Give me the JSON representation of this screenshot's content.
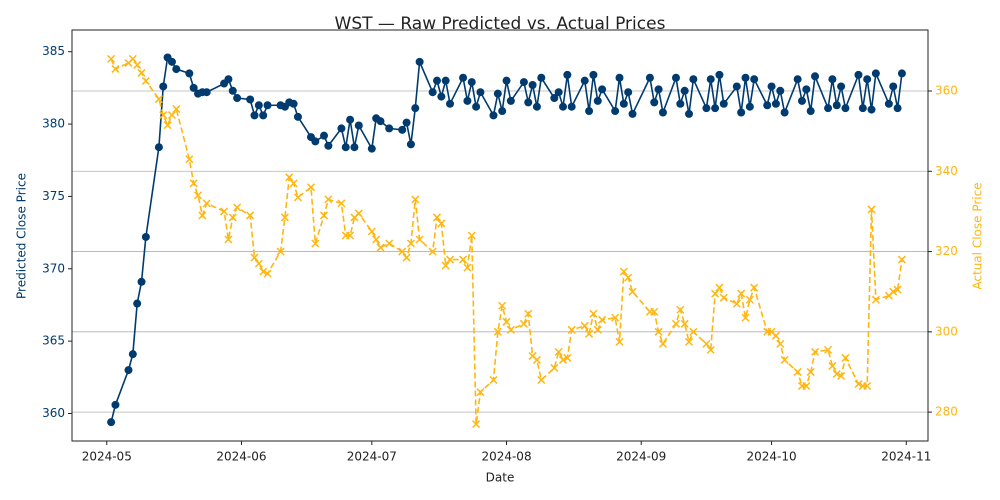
{
  "chart_data": {
    "type": "line",
    "title": "WST — Raw Predicted vs. Actual Prices",
    "xlabel": "Date",
    "ylabel": "Predicted Close Price",
    "y2label": "Actual Close Price",
    "x": [
      "2024-05-02",
      "2024-05-03",
      "2024-05-06",
      "2024-05-07",
      "2024-05-08",
      "2024-05-09",
      "2024-05-10",
      "2024-05-13",
      "2024-05-14",
      "2024-05-15",
      "2024-05-16",
      "2024-05-17",
      "2024-05-20",
      "2024-05-21",
      "2024-05-22",
      "2024-05-23",
      "2024-05-24",
      "2024-05-28",
      "2024-05-29",
      "2024-05-30",
      "2024-05-31",
      "2024-06-03",
      "2024-06-04",
      "2024-06-05",
      "2024-06-06",
      "2024-06-07",
      "2024-06-10",
      "2024-06-11",
      "2024-06-12",
      "2024-06-13",
      "2024-06-14",
      "2024-06-17",
      "2024-06-18",
      "2024-06-20",
      "2024-06-21",
      "2024-06-24",
      "2024-06-25",
      "2024-06-26",
      "2024-06-27",
      "2024-06-28",
      "2024-07-01",
      "2024-07-02",
      "2024-07-03",
      "2024-07-05",
      "2024-07-08",
      "2024-07-09",
      "2024-07-10",
      "2024-07-11",
      "2024-07-12",
      "2024-07-15",
      "2024-07-16",
      "2024-07-17",
      "2024-07-18",
      "2024-07-19",
      "2024-07-22",
      "2024-07-23",
      "2024-07-24",
      "2024-07-25",
      "2024-07-26",
      "2024-07-29",
      "2024-07-30",
      "2024-07-31",
      "2024-08-01",
      "2024-08-02",
      "2024-08-05",
      "2024-08-06",
      "2024-08-07",
      "2024-08-08",
      "2024-08-09",
      "2024-08-12",
      "2024-08-13",
      "2024-08-14",
      "2024-08-15",
      "2024-08-16",
      "2024-08-19",
      "2024-08-20",
      "2024-08-21",
      "2024-08-22",
      "2024-08-23",
      "2024-08-26",
      "2024-08-27",
      "2024-08-28",
      "2024-08-29",
      "2024-08-30",
      "2024-09-03",
      "2024-09-04",
      "2024-09-05",
      "2024-09-06",
      "2024-09-09",
      "2024-09-10",
      "2024-09-11",
      "2024-09-12",
      "2024-09-13",
      "2024-09-16",
      "2024-09-17",
      "2024-09-18",
      "2024-09-19",
      "2024-09-20",
      "2024-09-23",
      "2024-09-24",
      "2024-09-25",
      "2024-09-26",
      "2024-09-27",
      "2024-09-30",
      "2024-10-01",
      "2024-10-02",
      "2024-10-03",
      "2024-10-04",
      "2024-10-07",
      "2024-10-08",
      "2024-10-09",
      "2024-10-10",
      "2024-10-11",
      "2024-10-14",
      "2024-10-15",
      "2024-10-16",
      "2024-10-17",
      "2024-10-18",
      "2024-10-21",
      "2024-10-22",
      "2024-10-23",
      "2024-10-24",
      "2024-10-25",
      "2024-10-28",
      "2024-10-29",
      "2024-10-30",
      "2024-10-31"
    ],
    "series": [
      {
        "name": "Predicted Close Price",
        "color": "#003b6f",
        "axis": "y",
        "marker": "o",
        "linestyle": "solid",
        "values": [
          359.4,
          360.6,
          363.0,
          364.1,
          367.6,
          369.1,
          372.2,
          378.4,
          382.6,
          384.6,
          384.3,
          383.8,
          383.5,
          382.5,
          382.1,
          382.2,
          382.2,
          382.8,
          383.1,
          382.3,
          381.8,
          381.7,
          380.6,
          381.3,
          380.6,
          381.3,
          381.3,
          381.2,
          381.5,
          381.4,
          380.5,
          379.1,
          378.8,
          379.2,
          378.5,
          379.7,
          378.4,
          380.3,
          378.4,
          379.9,
          378.3,
          380.4,
          380.2,
          379.7,
          379.6,
          380.1,
          378.6,
          381.1,
          384.3,
          382.2,
          383.0,
          381.9,
          383.0,
          381.4,
          383.2,
          381.6,
          382.9,
          381.2,
          382.2,
          380.6,
          382.1,
          380.9,
          383.0,
          381.6,
          382.9,
          381.5,
          382.7,
          381.2,
          383.2,
          381.8,
          382.2,
          381.2,
          383.4,
          381.2,
          383.0,
          380.9,
          383.4,
          381.6,
          382.4,
          380.9,
          383.2,
          381.4,
          382.2,
          380.7,
          383.2,
          381.5,
          382.4,
          380.8,
          383.2,
          381.4,
          382.3,
          380.7,
          383.1,
          381.1,
          383.1,
          381.1,
          383.4,
          381.4,
          382.6,
          380.8,
          383.2,
          381.2,
          383.1,
          381.3,
          382.6,
          381.4,
          382.3,
          380.8,
          383.1,
          381.6,
          382.4,
          380.9,
          383.3,
          381.1,
          383.1,
          381.3,
          382.6,
          381.1,
          383.4,
          381.1,
          383.1,
          381.0,
          383.5,
          381.4,
          382.6,
          381.1,
          383.5
        ]
      },
      {
        "name": "Actual Close Price",
        "color": "#ffb612",
        "axis": "y2",
        "marker": "x",
        "linestyle": "dashed",
        "values": [
          368,
          365.5,
          367,
          368,
          366.5,
          364.5,
          362.5,
          358,
          354,
          351.5,
          354,
          355.5,
          343,
          337,
          334,
          329,
          332,
          330,
          323,
          328.5,
          331,
          329,
          318.5,
          317,
          315,
          314.5,
          320,
          328.5,
          338.5,
          337,
          333.5,
          336,
          322,
          329,
          333,
          332,
          324,
          324,
          328.5,
          329.5,
          325,
          323,
          321,
          322,
          320,
          318.5,
          322,
          333,
          323,
          320,
          328.5,
          327,
          316.5,
          318,
          318,
          316,
          324,
          277,
          285,
          288,
          300,
          306.5,
          302.5,
          300.5,
          302,
          304.5,
          294,
          293,
          288,
          291,
          295,
          293,
          293.5,
          300.5,
          301.5,
          299.5,
          304.5,
          300.5,
          303,
          303.5,
          297.5,
          315,
          313.5,
          310,
          305,
          305,
          300,
          297,
          302,
          305.5,
          302,
          297.5,
          300,
          297,
          295.5,
          309.5,
          311,
          308.5,
          307,
          309.5,
          303.5,
          308,
          311,
          300,
          300,
          299,
          297,
          293,
          290,
          286.5,
          286.5,
          290,
          295,
          295.5,
          291.5,
          289.5,
          289,
          293.5,
          287,
          286.5,
          286.5,
          330.5,
          308,
          309,
          310,
          310.5,
          318
        ]
      }
    ],
    "xlim": [
      "2024-04-23",
      "2024-11-06"
    ],
    "xticks": [
      {
        "value": "2024-05-01",
        "label": "2024-05"
      },
      {
        "value": "2024-06-01",
        "label": "2024-06"
      },
      {
        "value": "2024-07-01",
        "label": "2024-07"
      },
      {
        "value": "2024-08-01",
        "label": "2024-08"
      },
      {
        "value": "2024-09-01",
        "label": "2024-09"
      },
      {
        "value": "2024-10-01",
        "label": "2024-10"
      },
      {
        "value": "2024-11-01",
        "label": "2024-11"
      }
    ],
    "ylim": [
      358.1,
      386.5
    ],
    "yticks": [
      360,
      365,
      370,
      375,
      380,
      385
    ],
    "y2lim": [
      272.8,
      375.2
    ],
    "y2ticks": [
      280,
      300,
      320,
      340,
      360
    ],
    "grid": "y2"
  }
}
